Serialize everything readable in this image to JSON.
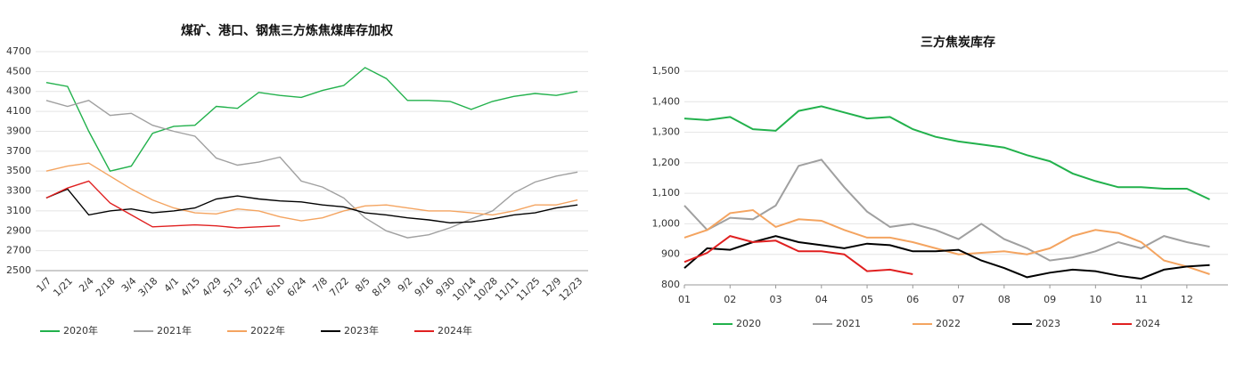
{
  "chart_data": [
    {
      "type": "line",
      "title": "煤矿、港口、钢焦三方炼焦煤库存加权",
      "categories": [
        "1/7",
        "1/21",
        "2/4",
        "2/18",
        "3/4",
        "3/18",
        "4/1",
        "4/15",
        "4/29",
        "5/13",
        "5/27",
        "6/10",
        "6/24",
        "7/8",
        "7/22",
        "8/5",
        "8/19",
        "9/2",
        "9/16",
        "9/30",
        "10/14",
        "10/28",
        "11/11",
        "11/25",
        "12/9",
        "12/23"
      ],
      "ylim": [
        2500,
        4700
      ],
      "yticks": [
        2500,
        2700,
        2900,
        3100,
        3300,
        3500,
        3700,
        3900,
        4100,
        4300,
        4500,
        4700
      ],
      "series": [
        {
          "name": "2020年",
          "color": "#22b14c",
          "values": [
            4390,
            4350,
            3900,
            3500,
            3550,
            3880,
            3950,
            3960,
            4150,
            4130,
            4290,
            4260,
            4240,
            4310,
            4360,
            4540,
            4430,
            4210,
            4210,
            4200,
            4120,
            4200,
            4250,
            4280,
            4260,
            4300
          ]
        },
        {
          "name": "2021年",
          "color": "#a0a0a0",
          "values": [
            4210,
            4150,
            4210,
            4060,
            4080,
            3960,
            3900,
            3850,
            3630,
            3560,
            3590,
            3640,
            3400,
            3340,
            3230,
            3030,
            2900,
            2830,
            2860,
            2930,
            3020,
            3100,
            3280,
            3390,
            3450,
            3490
          ]
        },
        {
          "name": "2022年",
          "color": "#f4a460",
          "values": [
            3500,
            3550,
            3580,
            3450,
            3320,
            3210,
            3130,
            3080,
            3070,
            3120,
            3100,
            3040,
            3000,
            3030,
            3100,
            3150,
            3160,
            3130,
            3100,
            3100,
            3080,
            3060,
            3100,
            3160,
            3160,
            3210
          ]
        },
        {
          "name": "2023年",
          "color": "#000000",
          "values": [
            3230,
            3320,
            3060,
            3100,
            3120,
            3080,
            3100,
            3130,
            3220,
            3250,
            3220,
            3200,
            3190,
            3160,
            3140,
            3080,
            3060,
            3030,
            3010,
            2980,
            2990,
            3020,
            3060,
            3080,
            3130,
            3160
          ]
        },
        {
          "name": "2024年",
          "color": "#e02020",
          "values": [
            3230,
            3330,
            3400,
            3180,
            3060,
            2940,
            2950,
            2960,
            2950,
            2930,
            2940,
            2950,
            null,
            null,
            null,
            null,
            null,
            null,
            null,
            null,
            null,
            null,
            null,
            null,
            null,
            null
          ]
        }
      ]
    },
    {
      "type": "line",
      "title": "三方焦炭库存",
      "x": [
        1,
        1.5,
        2,
        2.5,
        3,
        3.5,
        4,
        4.5,
        5,
        5.5,
        6,
        6.5,
        7,
        7.5,
        8,
        8.5,
        9,
        9.5,
        10,
        10.5,
        11,
        11.5,
        12,
        12.5
      ],
      "xlim": [
        1,
        12.9
      ],
      "xticks": [
        {
          "value": 1,
          "label": "01"
        },
        {
          "value": 2,
          "label": "02"
        },
        {
          "value": 3,
          "label": "03"
        },
        {
          "value": 4,
          "label": "04"
        },
        {
          "value": 5,
          "label": "05"
        },
        {
          "value": 6,
          "label": "06"
        },
        {
          "value": 7,
          "label": "07"
        },
        {
          "value": 8,
          "label": "08"
        },
        {
          "value": 9,
          "label": "09"
        },
        {
          "value": 10,
          "label": "10"
        },
        {
          "value": 11,
          "label": "11"
        },
        {
          "value": 12,
          "label": "12"
        }
      ],
      "ylim": [
        800,
        1500
      ],
      "yticks": [
        800,
        900,
        {
          "value": 1000,
          "label": "1,000"
        },
        {
          "value": 1100,
          "label": "1,100"
        },
        {
          "value": 1200,
          "label": "1,200"
        },
        {
          "value": 1300,
          "label": "1,300"
        },
        {
          "value": 1400,
          "label": "1,400"
        },
        {
          "value": 1500,
          "label": "1,500"
        }
      ],
      "series": [
        {
          "name": "2020",
          "color": "#22b14c",
          "values": [
            1345,
            1340,
            1350,
            1310,
            1305,
            1370,
            1385,
            1365,
            1345,
            1350,
            1310,
            1285,
            1270,
            1260,
            1250,
            1225,
            1205,
            1165,
            1140,
            1120,
            1120,
            1115,
            1115,
            1080
          ]
        },
        {
          "name": "2021",
          "color": "#a0a0a0",
          "values": [
            1060,
            980,
            1020,
            1015,
            1060,
            1190,
            1210,
            1120,
            1040,
            990,
            1000,
            980,
            950,
            1000,
            950,
            920,
            880,
            890,
            910,
            940,
            920,
            960,
            940,
            925
          ]
        },
        {
          "name": "2022",
          "color": "#f4a460",
          "values": [
            955,
            980,
            1035,
            1045,
            990,
            1015,
            1010,
            980,
            955,
            955,
            940,
            920,
            900,
            905,
            910,
            900,
            920,
            960,
            980,
            970,
            940,
            880,
            860,
            835
          ]
        },
        {
          "name": "2023",
          "color": "#000000",
          "values": [
            855,
            920,
            915,
            940,
            960,
            940,
            930,
            920,
            935,
            930,
            910,
            910,
            915,
            880,
            855,
            825,
            840,
            850,
            845,
            830,
            820,
            850,
            860,
            865
          ]
        },
        {
          "name": "2024",
          "color": "#e02020",
          "values": [
            875,
            905,
            960,
            940,
            945,
            910,
            910,
            900,
            845,
            850,
            835,
            null,
            null,
            null,
            null,
            null,
            null,
            null,
            null,
            null,
            null,
            null,
            null,
            null
          ]
        }
      ]
    }
  ]
}
